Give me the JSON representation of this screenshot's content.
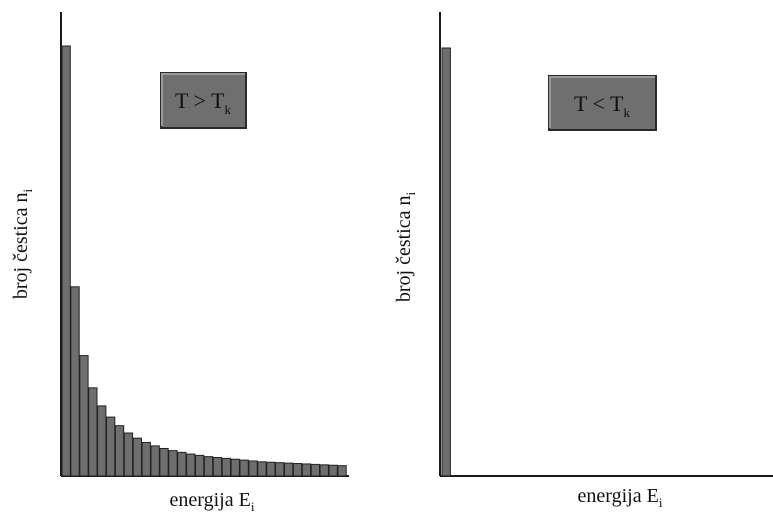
{
  "chart_data": [
    {
      "type": "bar",
      "badge": {
        "main": "T > T",
        "sub": "k"
      },
      "xlabel": {
        "main": "energija E",
        "sub": "i"
      },
      "ylabel": {
        "main": "broj čestica n",
        "sub": "i"
      },
      "values": [
        1.0,
        0.44,
        0.28,
        0.205,
        0.163,
        0.137,
        0.117,
        0.1,
        0.088,
        0.078,
        0.07,
        0.064,
        0.059,
        0.055,
        0.051,
        0.048,
        0.045,
        0.043,
        0.041,
        0.039,
        0.037,
        0.035,
        0.033,
        0.032,
        0.031,
        0.03,
        0.029,
        0.028,
        0.027,
        0.026,
        0.025,
        0.024
      ],
      "ylim": [
        0,
        1
      ]
    },
    {
      "type": "bar",
      "badge": {
        "main": "T < T",
        "sub": "k"
      },
      "xlabel": {
        "main": "energija E",
        "sub": "i"
      },
      "ylabel": {
        "main": "broj čestica n",
        "sub": "i"
      },
      "values": [
        1.0
      ],
      "ylim": [
        0,
        1
      ]
    }
  ],
  "colors": {
    "bar": "#6e6e6e",
    "badge": "#6f6f6f",
    "axis": "#1a1a1a"
  }
}
